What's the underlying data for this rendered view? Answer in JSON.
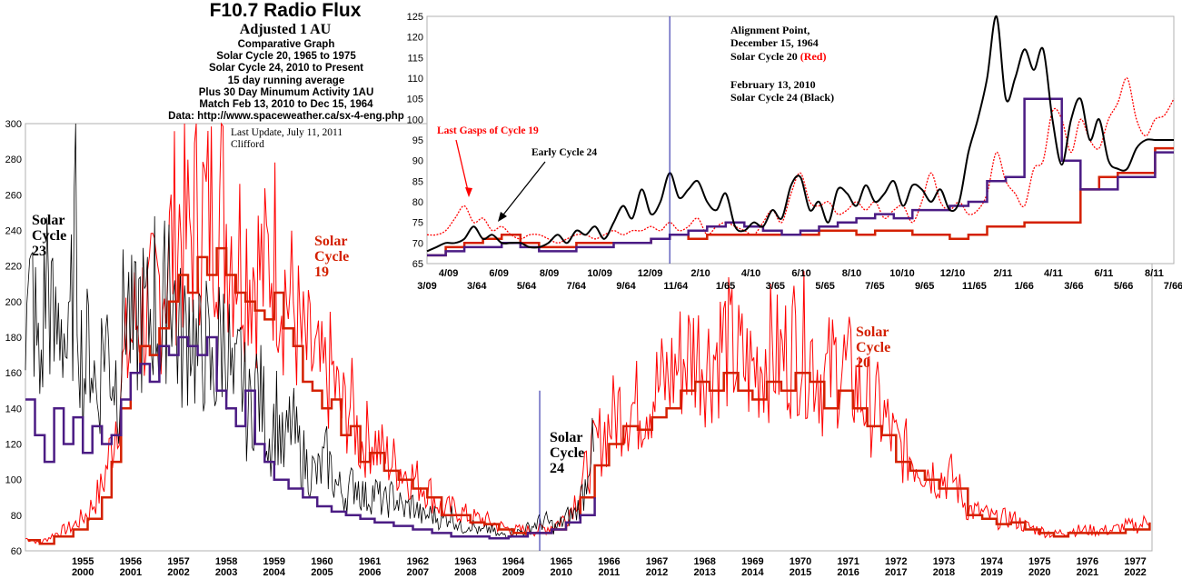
{
  "header": {
    "title": "F10.7 Radio Flux",
    "subtitle": "Adjusted 1 AU",
    "lines": [
      "Comparative Graph",
      "Solar Cycle 20, 1965 to 1975",
      "Solar Cycle 24, 2010 to Present",
      "15 day running average",
      "Plus 30 Day Minumum Activity 1AU",
      "Match Feb 13, 2010 to Dec 15, 1964",
      "Data: http://www.spaceweather.ca/sx-4-eng.php"
    ],
    "update_line1": "Last Update, July 11, 2011",
    "update_line2": "Clifford"
  },
  "colors": {
    "cycle20_daily": "#ff0000",
    "cycle20_avg": "#d42000",
    "recent_black": "#000000",
    "cycle_min": "#4b1c84",
    "alignment_line": "#1a1aa0"
  },
  "chart_data": [
    {
      "type": "line",
      "id": "main",
      "ylim": [
        60,
        300
      ],
      "y_ticks": [
        60,
        80,
        100,
        120,
        140,
        160,
        180,
        200,
        220,
        240,
        260,
        280,
        300
      ],
      "x_ticks_top": [
        "1955",
        "1956",
        "1957",
        "1958",
        "1959",
        "1960",
        "1961",
        "1962",
        "1963",
        "1964",
        "1965",
        "1966",
        "1967",
        "1968",
        "1969",
        "1970",
        "1971",
        "1972",
        "1973",
        "1974",
        "1975",
        "1976",
        "1977"
      ],
      "x_ticks_bottom": [
        "2000",
        "2001",
        "2002",
        "2003",
        "2004",
        "2005",
        "2006",
        "2007",
        "2008",
        "2009",
        "2010",
        "2011",
        "2012",
        "2013",
        "2014",
        "2015",
        "2016",
        "2017",
        "2018",
        "2019",
        "2020",
        "2021",
        "2022"
      ],
      "annotations": {
        "cycle23": [
          "Solar",
          "Cycle",
          "23"
        ],
        "cycle19": [
          "Solar",
          "Cycle",
          "19"
        ],
        "cycle20": [
          "Solar",
          "Cycle",
          "20"
        ],
        "cycle24": [
          "Solar",
          "Cycle",
          "24"
        ]
      },
      "series": [
        {
          "key": "red_avg",
          "x": [
            1954.35,
            1954.6,
            1954.9,
            1955.3,
            1955.6,
            1955.9,
            1956.1,
            1956.3,
            1956.5,
            1956.7,
            1956.9,
            1957.1,
            1957.3,
            1957.5,
            1957.7,
            1957.9,
            1958.1,
            1958.3,
            1958.5,
            1958.7,
            1958.9,
            1959.1,
            1959.3,
            1959.5,
            1959.7,
            1959.9,
            1960.1,
            1960.3,
            1960.5,
            1960.7,
            1960.9,
            1961.1,
            1961.3,
            1961.5,
            1961.8,
            1962.1,
            1962.4,
            1962.7,
            1963.0,
            1963.3,
            1963.6,
            1963.9,
            1964.2,
            1964.5,
            1964.8,
            1965.0,
            1965.3,
            1965.6,
            1965.9,
            1966.2,
            1966.5,
            1966.8,
            1967.1,
            1967.4,
            1967.7,
            1968.0,
            1968.3,
            1968.6,
            1968.9,
            1969.2,
            1969.5,
            1969.8,
            1970.1,
            1970.4,
            1970.7,
            1971.0,
            1971.3,
            1971.6,
            1971.9,
            1972.2,
            1972.5,
            1972.8,
            1973.1,
            1973.4,
            1973.7,
            1974.0,
            1974.3,
            1974.6,
            1974.9,
            1975.2,
            1975.5,
            1975.8,
            1976.1,
            1976.4,
            1976.7,
            1977.0,
            1977.3,
            1977.6,
            1977.8
          ],
          "y": [
            66,
            64,
            68,
            72,
            78,
            90,
            110,
            140,
            160,
            175,
            170,
            185,
            200,
            215,
            205,
            225,
            215,
            230,
            215,
            205,
            200,
            195,
            190,
            205,
            185,
            175,
            155,
            150,
            140,
            145,
            125,
            130,
            110,
            115,
            105,
            100,
            95,
            90,
            80,
            80,
            76,
            75,
            72,
            70,
            70,
            70,
            72,
            76,
            90,
            108,
            120,
            130,
            128,
            135,
            140,
            150,
            155,
            150,
            160,
            150,
            145,
            155,
            150,
            160,
            155,
            140,
            150,
            140,
            130,
            125,
            110,
            105,
            100,
            95,
            95,
            80,
            78,
            75,
            76,
            72,
            70,
            68,
            70,
            70,
            70,
            70,
            72,
            72,
            76
          ]
        },
        {
          "key": "black",
          "x": [
            1954.3,
            1954.45,
            1954.6,
            1954.75,
            1954.9,
            1955.05,
            1955.2,
            1955.35,
            1955.5,
            1955.65,
            1955.8,
            1955.95,
            1956.1,
            1956.25,
            1956.4,
            1956.55,
            1956.7,
            1956.85,
            1957.0,
            1957.15,
            1957.3,
            1957.45,
            1957.6,
            1957.75,
            1957.9,
            1958.05,
            1958.2,
            1958.35,
            1958.5,
            1958.65,
            1958.8,
            1958.95,
            1959.1,
            1959.25,
            1959.4,
            1959.55,
            1959.7,
            1959.85,
            1960.0,
            1960.2,
            1960.4,
            1960.6,
            1960.8,
            1961.0,
            1961.2,
            1961.4,
            1961.6,
            1961.8,
            1962.0,
            1962.2,
            1962.4,
            1962.6,
            1962.8,
            1963.0,
            1963.2,
            1963.4,
            1963.6,
            1963.8,
            1964.0,
            1964.2,
            1964.4,
            1964.6,
            1964.8,
            1965.0,
            1965.2,
            1965.4,
            1965.6,
            1965.8,
            1966.0,
            1966.1,
            1966.2
          ],
          "y": [
            175,
            200,
            150,
            215,
            170,
            190,
            160,
            230,
            150,
            175,
            140,
            180,
            160,
            150,
            200,
            170,
            190,
            180,
            200,
            165,
            230,
            180,
            170,
            190,
            160,
            175,
            150,
            170,
            180,
            140,
            160,
            130,
            150,
            140,
            120,
            135,
            110,
            130,
            115,
            105,
            100,
            110,
            95,
            90,
            98,
            88,
            92,
            85,
            90,
            82,
            85,
            78,
            80,
            76,
            80,
            72,
            75,
            70,
            72,
            68,
            70,
            70,
            72,
            75,
            76,
            72,
            78,
            80,
            95,
            120,
            105
          ]
        },
        {
          "key": "min",
          "x": [
            1954.3,
            1954.5,
            1954.7,
            1954.9,
            1955.1,
            1955.3,
            1955.5,
            1955.7,
            1955.9,
            1956.1,
            1956.3,
            1956.5,
            1956.7,
            1956.9,
            1957.1,
            1957.3,
            1957.5,
            1957.7,
            1957.9,
            1958.1,
            1958.3,
            1958.5,
            1958.7,
            1958.9,
            1959.1,
            1959.3,
            1959.5,
            1959.8,
            1960.1,
            1960.4,
            1960.7,
            1961.0,
            1961.3,
            1961.6,
            1962.0,
            1962.4,
            1962.8,
            1963.2,
            1963.6,
            1964.0,
            1964.4,
            1964.8,
            1965.0,
            1965.3,
            1965.6,
            1965.9,
            1966.2
          ],
          "y": [
            145,
            125,
            110,
            140,
            120,
            135,
            115,
            130,
            120,
            125,
            145,
            160,
            165,
            155,
            175,
            170,
            180,
            175,
            170,
            180,
            150,
            140,
            130,
            150,
            120,
            110,
            100,
            95,
            90,
            85,
            82,
            80,
            78,
            76,
            74,
            72,
            70,
            68,
            68,
            67,
            68,
            70,
            70,
            72,
            76,
            80,
            90
          ]
        }
      ],
      "alignment_x": 1965.05
    },
    {
      "type": "line",
      "id": "inset",
      "ylim": [
        65,
        125
      ],
      "y_ticks": [
        65,
        70,
        75,
        80,
        85,
        90,
        95,
        100,
        105,
        110,
        115,
        120,
        125
      ],
      "x_ticks_top": [
        "4/09",
        "6/09",
        "8/09",
        "10/09",
        "12/09",
        "2/10",
        "4/10",
        "6/10",
        "8/10",
        "10/10",
        "12/10",
        "2/11",
        "4/11",
        "6/11",
        "8/11"
      ],
      "x_ticks_bottom": [
        "3/09",
        "3/64",
        "5/64",
        "7/64",
        "9/64",
        "11/64",
        "1/65",
        "3/65",
        "5/65",
        "7/65",
        "9/65",
        "11/65",
        "1/66",
        "3/66",
        "5/66",
        "7/66"
      ],
      "annotations": {
        "align1": "Alignment Point,",
        "align2": "December 15, 1964",
        "align3": "Solar Cycle 20",
        "align3_red": "(Red)",
        "align4": "February 13, 2010",
        "align5": "Solar Cycle 24 (Black)",
        "last_gasps": "Last Gasps of Cycle 19",
        "early24": "Early Cycle 24"
      },
      "series": [
        {
          "key": "black",
          "x": [
            0,
            1,
            2,
            3,
            4,
            5,
            6,
            7,
            8,
            9,
            10,
            11,
            12,
            13,
            14,
            15,
            16,
            17,
            18,
            19,
            20,
            21,
            22,
            23,
            24,
            25,
            26,
            27,
            28,
            29,
            30,
            31,
            32,
            33,
            34,
            35,
            36,
            37,
            38,
            39,
            40,
            41,
            42,
            43,
            44,
            45,
            46,
            47,
            48,
            49,
            50,
            51,
            52,
            53,
            54,
            55,
            56,
            57,
            58,
            59,
            60,
            61,
            62,
            63,
            64,
            65,
            66,
            67,
            68,
            69,
            70,
            71,
            72,
            73,
            74,
            75,
            76,
            77,
            78,
            79,
            80
          ],
          "y": [
            68,
            69,
            70,
            70,
            71,
            74,
            71,
            72,
            70,
            70,
            70,
            69,
            69,
            70,
            72,
            70,
            73,
            72,
            74,
            71,
            75,
            79,
            76,
            83,
            77,
            80,
            87,
            81,
            83,
            85,
            80,
            78,
            82,
            74,
            73,
            75,
            74,
            78,
            76,
            84,
            86,
            78,
            80,
            75,
            83,
            82,
            79,
            84,
            80,
            82,
            85,
            79,
            84,
            83,
            80,
            83,
            78,
            80,
            92,
            100,
            110,
            125,
            105,
            110,
            117,
            112,
            117,
            100,
            89,
            100,
            105,
            95,
            100,
            90,
            88,
            88,
            93,
            95,
            95,
            95,
            95
          ]
        },
        {
          "key": "red",
          "x": [
            0,
            1,
            2,
            3,
            4,
            5,
            6,
            7,
            8,
            9,
            10,
            11,
            12,
            13,
            14,
            15,
            16,
            17,
            18,
            19,
            20,
            21,
            22,
            23,
            24,
            25,
            26,
            27,
            28,
            29,
            30,
            31,
            32,
            33,
            34,
            35,
            36,
            37,
            38,
            39,
            40,
            41,
            42,
            43,
            44,
            45,
            46,
            47,
            48,
            49,
            50,
            51,
            52,
            53,
            54,
            55,
            56,
            57,
            58,
            59,
            60,
            61,
            62,
            63,
            64,
            65,
            66,
            67,
            68,
            69,
            70,
            71,
            72,
            73,
            74,
            75,
            76,
            77,
            78,
            79,
            80
          ],
          "y": [
            72,
            72,
            73,
            76,
            79,
            75,
            76,
            73,
            74,
            72,
            71,
            72,
            72,
            71,
            70,
            71,
            72,
            72,
            71,
            72,
            73,
            72,
            73,
            73,
            74,
            73,
            75,
            73,
            74,
            76,
            72,
            74,
            75,
            74,
            73,
            72,
            75,
            78,
            75,
            82,
            87,
            80,
            79,
            80,
            77,
            78,
            80,
            78,
            80,
            76,
            78,
            79,
            75,
            80,
            87,
            80,
            78,
            80,
            77,
            78,
            82,
            92,
            85,
            82,
            79,
            88,
            90,
            102,
            100,
            92,
            100,
            95,
            93,
            100,
            104,
            110,
            100,
            96,
            100,
            101,
            105
          ]
        },
        {
          "key": "red_avg",
          "x": [
            0,
            2,
            4,
            6,
            8,
            10,
            12,
            14,
            16,
            18,
            20,
            22,
            24,
            26,
            28,
            30,
            32,
            34,
            36,
            38,
            40,
            42,
            44,
            46,
            48,
            50,
            52,
            54,
            56,
            58,
            60,
            62,
            64,
            66,
            68,
            70,
            72,
            74,
            76,
            78,
            80
          ],
          "y": [
            67,
            69,
            70,
            71,
            72,
            70,
            69,
            69,
            70,
            70,
            70,
            70,
            71,
            72,
            71,
            72,
            72,
            72,
            72,
            72,
            72,
            73,
            73,
            72,
            73,
            73,
            72,
            72,
            71,
            72,
            74,
            74,
            75,
            75,
            75,
            83,
            86,
            87,
            87,
            93,
            93
          ]
        },
        {
          "key": "min",
          "x": [
            0,
            2,
            4,
            6,
            8,
            10,
            12,
            14,
            16,
            18,
            20,
            22,
            24,
            26,
            28,
            30,
            32,
            34,
            36,
            38,
            40,
            42,
            44,
            46,
            48,
            50,
            52,
            54,
            56,
            58,
            60,
            62,
            64,
            66,
            68,
            70,
            72,
            74,
            76,
            78,
            80
          ],
          "y": [
            67,
            68,
            69,
            69,
            70,
            69,
            68,
            68,
            69,
            69,
            70,
            70,
            71,
            72,
            73,
            74,
            75,
            74,
            73,
            72,
            73,
            74,
            75,
            76,
            77,
            76,
            78,
            78,
            79,
            80,
            85,
            86,
            105,
            105,
            90,
            83,
            83,
            86,
            86,
            92,
            92
          ]
        }
      ],
      "alignment_x": 26
    }
  ]
}
